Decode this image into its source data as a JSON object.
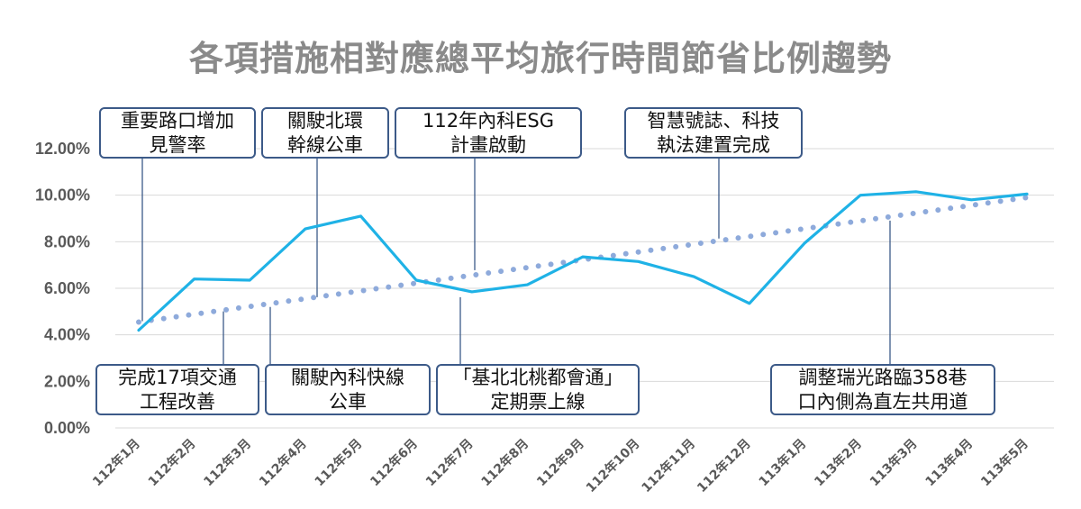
{
  "chart_data": {
    "type": "line",
    "title": "各項措施相對應總平均旅行時間節省比例趨勢",
    "categories": [
      "112年1月",
      "112年2月",
      "112年3月",
      "112年4月",
      "112年5月",
      "112年6月",
      "112年7月",
      "112年8月",
      "112年9月",
      "112年10月",
      "112年11月",
      "112年12月",
      "113年1月",
      "113年2月",
      "113年3月",
      "113年4月",
      "113年5月"
    ],
    "series": [
      {
        "values": [
          4.2,
          6.4,
          6.35,
          8.55,
          9.1,
          6.35,
          5.85,
          6.15,
          7.35,
          7.15,
          6.5,
          5.35,
          7.95,
          10.0,
          10.15,
          9.8,
          10.05
        ],
        "color": "#1fb2e6"
      }
    ],
    "trendline": {
      "start": 4.55,
      "end": 9.9,
      "color": "#8eaadb",
      "style": "dotted"
    },
    "ylim": [
      0,
      12
    ],
    "yticks": [
      "0.00%",
      "2.00%",
      "4.00%",
      "6.00%",
      "8.00%",
      "10.00%",
      "12.00%"
    ],
    "grid": true,
    "annotations": [
      {
        "lines": [
          "重要路口增加",
          "見警率"
        ],
        "month_index": 0
      },
      {
        "lines": [
          "關駛北環",
          "幹線公車"
        ],
        "month_index": 3
      },
      {
        "lines": [
          "112年內科ESG",
          "計畫啟動"
        ],
        "month_index": 6
      },
      {
        "lines": [
          "智慧號誌、科技",
          "執法建置完成"
        ],
        "month_index": 10
      },
      {
        "lines": [
          "完成17項交通",
          "工程改善"
        ],
        "month_index": 1
      },
      {
        "lines": [
          "關駛內科快線",
          "公車"
        ],
        "month_index": 2
      },
      {
        "lines": [
          "「基北北桃都會通」",
          "定期票上線"
        ],
        "month_index": 6
      },
      {
        "lines": [
          "調整瑞光路臨358巷",
          "口內側為直左共用道"
        ],
        "month_index": 14
      }
    ]
  }
}
